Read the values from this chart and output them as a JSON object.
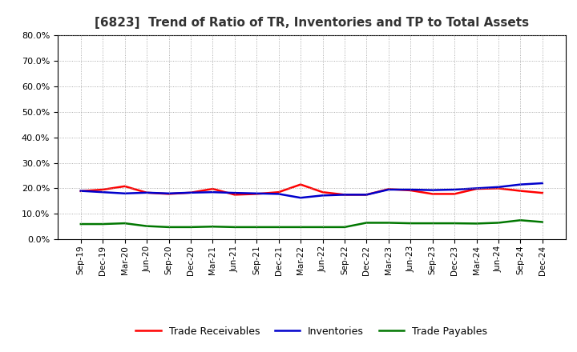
{
  "title": "[6823]  Trend of Ratio of TR, Inventories and TP to Total Assets",
  "x_labels": [
    "Sep-19",
    "Dec-19",
    "Mar-20",
    "Jun-20",
    "Sep-20",
    "Dec-20",
    "Mar-21",
    "Jun-21",
    "Sep-21",
    "Dec-21",
    "Mar-22",
    "Jun-22",
    "Sep-22",
    "Dec-22",
    "Mar-23",
    "Jun-23",
    "Sep-23",
    "Dec-23",
    "Mar-24",
    "Jun-24",
    "Sep-24",
    "Dec-24"
  ],
  "trade_receivables": [
    0.189,
    0.195,
    0.208,
    0.183,
    0.178,
    0.183,
    0.198,
    0.175,
    0.178,
    0.185,
    0.215,
    0.185,
    0.175,
    0.175,
    0.197,
    0.192,
    0.178,
    0.178,
    0.198,
    0.2,
    0.19,
    0.182
  ],
  "inventories": [
    0.19,
    0.185,
    0.18,
    0.183,
    0.18,
    0.183,
    0.185,
    0.182,
    0.18,
    0.178,
    0.163,
    0.172,
    0.175,
    0.175,
    0.195,
    0.195,
    0.193,
    0.195,
    0.2,
    0.205,
    0.215,
    0.22
  ],
  "trade_payables": [
    0.06,
    0.06,
    0.063,
    0.052,
    0.048,
    0.048,
    0.05,
    0.048,
    0.048,
    0.048,
    0.048,
    0.048,
    0.048,
    0.065,
    0.065,
    0.063,
    0.063,
    0.063,
    0.062,
    0.065,
    0.075,
    0.068
  ],
  "line_colors": {
    "trade_receivables": "#FF0000",
    "inventories": "#0000CC",
    "trade_payables": "#007700"
  },
  "line_width": 1.8,
  "ylim": [
    0.0,
    0.8
  ],
  "yticks": [
    0.0,
    0.1,
    0.2,
    0.3,
    0.4,
    0.5,
    0.6,
    0.7,
    0.8
  ],
  "background_color": "#FFFFFF",
  "grid_color": "#999999",
  "legend_labels": [
    "Trade Receivables",
    "Inventories",
    "Trade Payables"
  ]
}
